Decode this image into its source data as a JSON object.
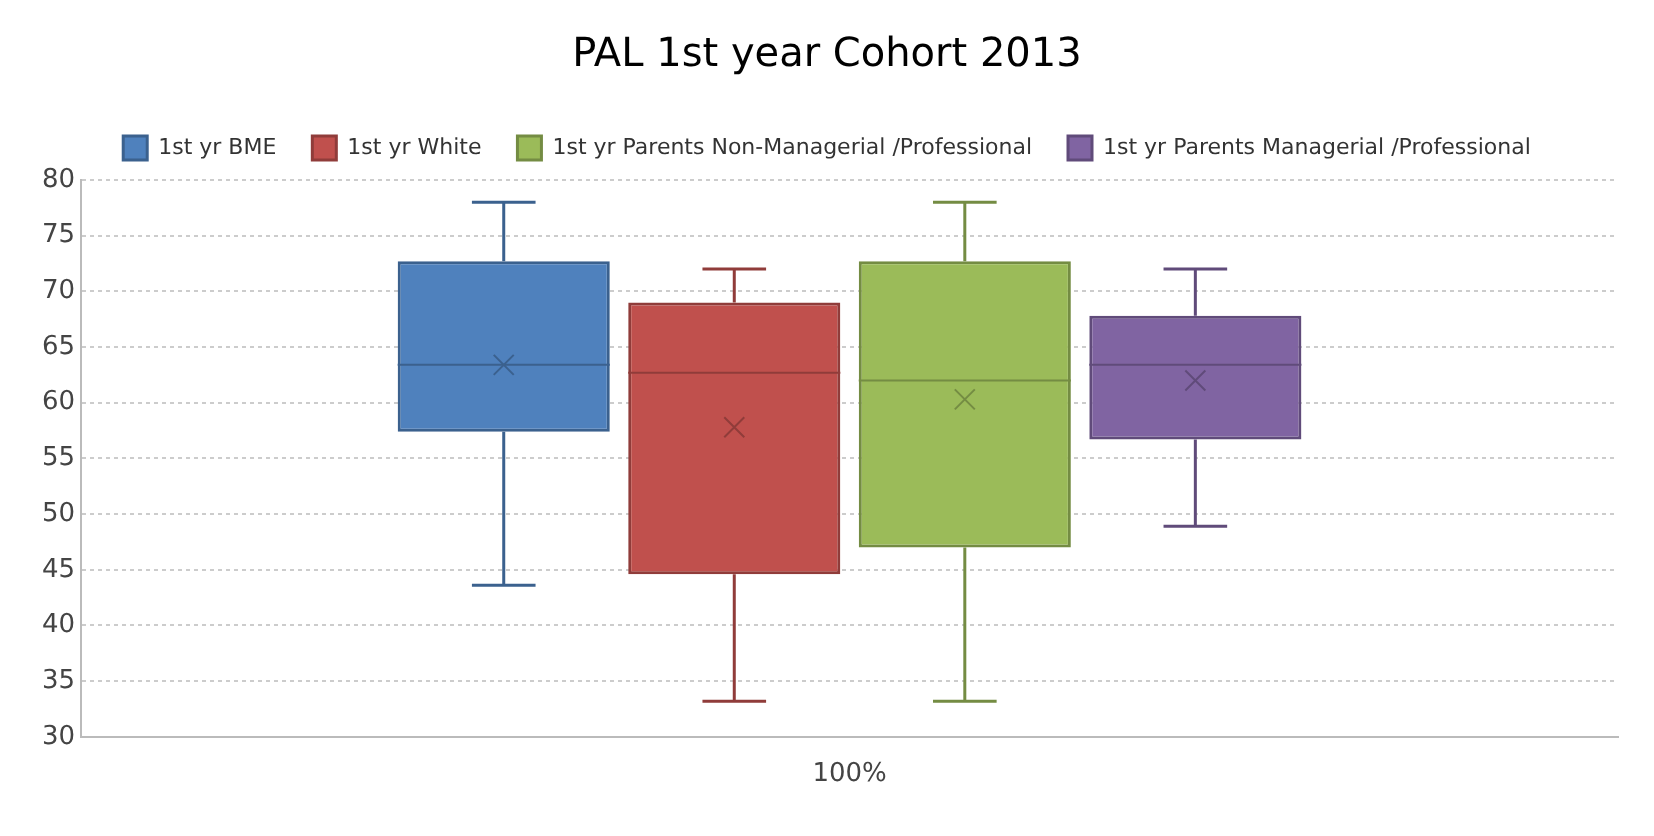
{
  "chart_data": {
    "type": "box",
    "title": "PAL 1st year Cohort 2013",
    "categories": [
      "100%"
    ],
    "series": [
      {
        "name": "1st yr BME",
        "color": "#4f81bd",
        "boxes": [
          {
            "low": 43.6,
            "q1": 57.4,
            "median": 63.4,
            "q3": 72.7,
            "high": 78,
            "mean": 63.4
          }
        ]
      },
      {
        "name": "1st yr White",
        "color": "#c0504d",
        "boxes": [
          {
            "low": 33.2,
            "q1": 44.6,
            "median": 62.7,
            "q3": 69,
            "high": 72,
            "mean": 57.8
          }
        ]
      },
      {
        "name": "1st yr Parents Non-Managerial /Professional",
        "color": "#9bbb59",
        "boxes": [
          {
            "low": 33.2,
            "q1": 47,
            "median": 62,
            "q3": 72.7,
            "high": 78,
            "mean": 60.3
          }
        ]
      },
      {
        "name": "1st yr Parents Managerial /Professional",
        "color": "#8064a2",
        "boxes": [
          {
            "low": 48.9,
            "q1": 56.7,
            "median": 63.4,
            "q3": 67.8,
            "high": 72,
            "mean": 62
          }
        ]
      }
    ],
    "ylim": [
      30,
      80
    ],
    "yticks": [
      30,
      35,
      40,
      45,
      50,
      55,
      60,
      65,
      70,
      75,
      80
    ],
    "grid": "y",
    "legend": "top"
  }
}
